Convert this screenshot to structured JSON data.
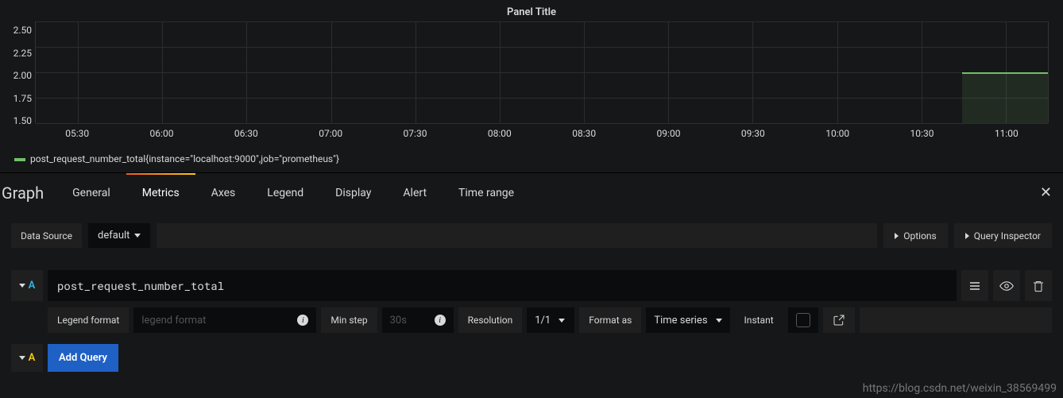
{
  "panel": {
    "title": "Panel Title",
    "background_color": "#161719",
    "grid_color": "#2c2d30",
    "text_color": "#d8d9da"
  },
  "chart": {
    "type": "line",
    "ylim": [
      1.5,
      2.5
    ],
    "ytick_step": 0.25,
    "yticks": [
      "2.50",
      "2.25",
      "2.00",
      "1.75",
      "1.50"
    ],
    "xticks": [
      "05:30",
      "06:00",
      "06:30",
      "07:00",
      "07:30",
      "08:00",
      "08:30",
      "09:00",
      "09:30",
      "10:00",
      "10:30",
      "11:00"
    ],
    "series": [
      {
        "name": "post_request_number_total{instance=\"localhost:9000\",job=\"prometheus\"}",
        "color": "#73bf69",
        "value": 2.0,
        "fill_opacity": 0.12,
        "start_x_fraction": 0.915,
        "end_x_fraction": 1.0
      }
    ],
    "legend_label": "post_request_number_total{instance=\"localhost:9000\",job=\"prometheus\"}"
  },
  "tabs": {
    "heading": "Graph",
    "items": [
      "General",
      "Metrics",
      "Axes",
      "Legend",
      "Display",
      "Alert",
      "Time range"
    ],
    "active_index": 1
  },
  "datasource": {
    "label": "Data Source",
    "selected": "default",
    "options_label": "Options",
    "inspector_label": "Query Inspector"
  },
  "query": {
    "letter": "A",
    "expression": "post_request_number_total",
    "legend_format_label": "Legend format",
    "legend_format_placeholder": "legend format",
    "min_step_label": "Min step",
    "min_step_placeholder": "30s",
    "resolution_label": "Resolution",
    "resolution_value": "1/1",
    "format_as_label": "Format as",
    "format_as_value": "Time series",
    "instant_label": "Instant",
    "instant_checked": false
  },
  "addquery": {
    "letter": "A",
    "label": "Add Query"
  },
  "watermark": "https://blog.csdn.net/weixin_38569499"
}
